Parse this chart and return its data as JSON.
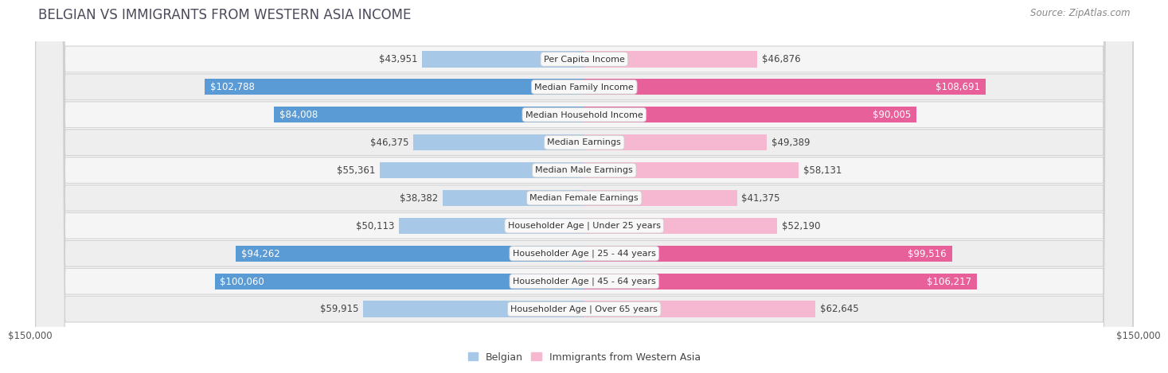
{
  "title": "BELGIAN VS IMMIGRANTS FROM WESTERN ASIA INCOME",
  "source": "Source: ZipAtlas.com",
  "categories": [
    "Per Capita Income",
    "Median Family Income",
    "Median Household Income",
    "Median Earnings",
    "Median Male Earnings",
    "Median Female Earnings",
    "Householder Age | Under 25 years",
    "Householder Age | 25 - 44 years",
    "Householder Age | 45 - 64 years",
    "Householder Age | Over 65 years"
  ],
  "belgian_values": [
    43951,
    102788,
    84008,
    46375,
    55361,
    38382,
    50113,
    94262,
    100060,
    59915
  ],
  "immigrant_values": [
    46876,
    108691,
    90005,
    49389,
    58131,
    41375,
    52190,
    99516,
    106217,
    62645
  ],
  "belgian_labels": [
    "$43,951",
    "$102,788",
    "$84,008",
    "$46,375",
    "$55,361",
    "$38,382",
    "$50,113",
    "$94,262",
    "$100,060",
    "$59,915"
  ],
  "immigrant_labels": [
    "$46,876",
    "$108,691",
    "$90,005",
    "$49,389",
    "$58,131",
    "$41,375",
    "$52,190",
    "$99,516",
    "$106,217",
    "$62,645"
  ],
  "max_value": 150000,
  "belgian_color_light": "#a8c8e8",
  "belgian_color_dark": "#5b9bd5",
  "immigrant_color_light": "#f5b8d0",
  "immigrant_color_dark": "#e8609a",
  "row_bg_even": "#f5f5f5",
  "row_bg_odd": "#eeeeee",
  "row_border": "#d0d0d0",
  "cat_label_bg": "#f8f8f8",
  "cat_label_border": "#cccccc",
  "title_fontsize": 12,
  "source_fontsize": 8.5,
  "bar_label_fontsize": 8.5,
  "cat_label_fontsize": 8,
  "axis_label_fontsize": 8.5,
  "legend_fontsize": 9,
  "background_color": "#ffffff",
  "inside_label_threshold": 75000
}
